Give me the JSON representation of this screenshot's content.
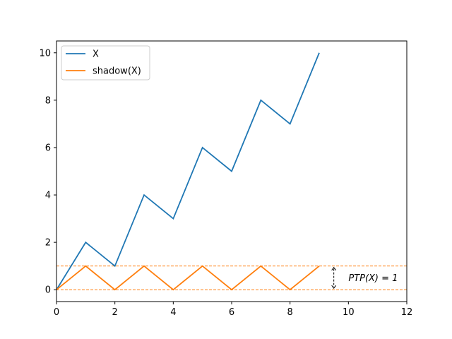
{
  "chart_data": {
    "type": "line",
    "title": "",
    "xlabel": "",
    "ylabel": "",
    "xlim": [
      0,
      12
    ],
    "ylim": [
      -0.5,
      10.5
    ],
    "xticks": [
      0,
      2,
      4,
      6,
      8,
      10,
      12
    ],
    "yticks": [
      0,
      2,
      4,
      6,
      8,
      10
    ],
    "grid": false,
    "legend_position": "top-left",
    "series": [
      {
        "name": "X",
        "color": "#1f77b4",
        "x": [
          0,
          1,
          2,
          3,
          4,
          5,
          6,
          7,
          8,
          9
        ],
        "y": [
          0,
          2,
          1,
          4,
          3,
          6,
          5,
          8,
          7,
          10
        ]
      },
      {
        "name": "shadow(X)",
        "color": "#ff7f0e",
        "x": [
          0,
          1,
          2,
          3,
          4,
          5,
          6,
          7,
          8,
          9
        ],
        "y": [
          0,
          1,
          0,
          1,
          0,
          1,
          0,
          1,
          0,
          1
        ]
      }
    ],
    "reference_lines": [
      {
        "y": 0,
        "style": "dashed",
        "color": "#ff7f0e"
      },
      {
        "y": 1,
        "style": "dashed",
        "color": "#ff7f0e"
      }
    ],
    "annotation": {
      "text": "PTP(X) = 1",
      "arrow_x": 9.5,
      "arrow_from": 0,
      "arrow_to": 1,
      "text_x": 10,
      "text_y": 0.5
    }
  }
}
